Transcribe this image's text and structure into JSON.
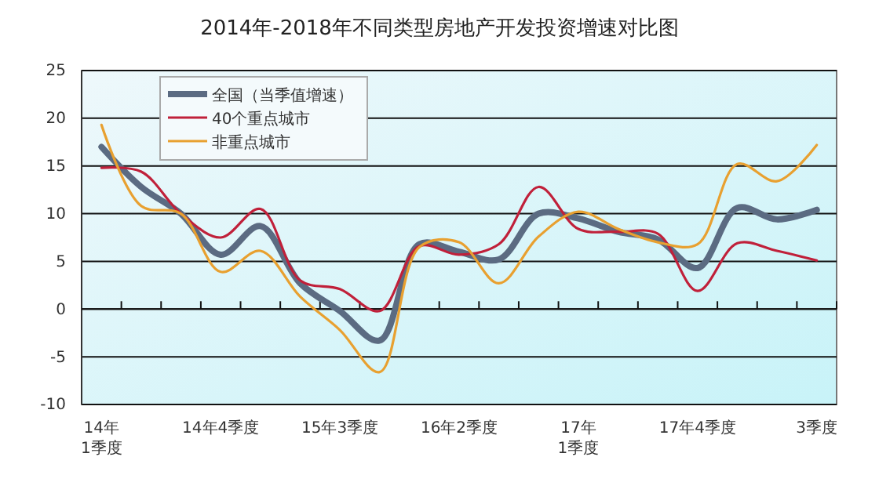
{
  "chart_data": {
    "type": "line",
    "title": "2014年-2018年不同类型房地产开发投资增速对比图",
    "categories": [
      "14年\n1季度",
      null,
      null,
      "14年4季度",
      null,
      null,
      "15年3季度",
      null,
      null,
      "16年2季度",
      null,
      null,
      "17年\n1季度",
      null,
      null,
      "17年4季度",
      null,
      null,
      "3季度"
    ],
    "series": [
      {
        "name": "全国（当季值增速）",
        "color": "#5b6b82",
        "values": [
          17,
          12.8,
          10,
          5.7,
          8.7,
          2.7,
          -0.2,
          -3.3,
          6.8,
          6,
          5.2,
          10,
          9.5,
          8.1,
          7.3,
          4.3,
          10.6,
          9.4,
          10.4
        ]
      },
      {
        "name": "40个重点城市",
        "color": "#c0203a",
        "values": [
          14.8,
          14.4,
          10,
          7.5,
          10.5,
          3,
          2.1,
          -0.2,
          6.6,
          5.7,
          6.8,
          12.8,
          8.4,
          8.1,
          7.9,
          1.9,
          6.9,
          6.1,
          5.1
        ]
      },
      {
        "name": "非重点城市",
        "color": "#e8a030",
        "values": [
          19.3,
          10.8,
          10,
          3.9,
          6.1,
          1.3,
          -2.2,
          -6.6,
          6.5,
          7,
          2.7,
          7.6,
          10.2,
          8.4,
          7,
          6.8,
          15.2,
          13.4,
          17.2
        ]
      }
    ],
    "ylim": [
      -10,
      25
    ],
    "yticks": [
      -10,
      -5,
      0,
      5,
      10,
      15,
      20,
      25
    ],
    "grid": "y",
    "legend": "top left",
    "marker": "none",
    "line_style": "solid"
  }
}
